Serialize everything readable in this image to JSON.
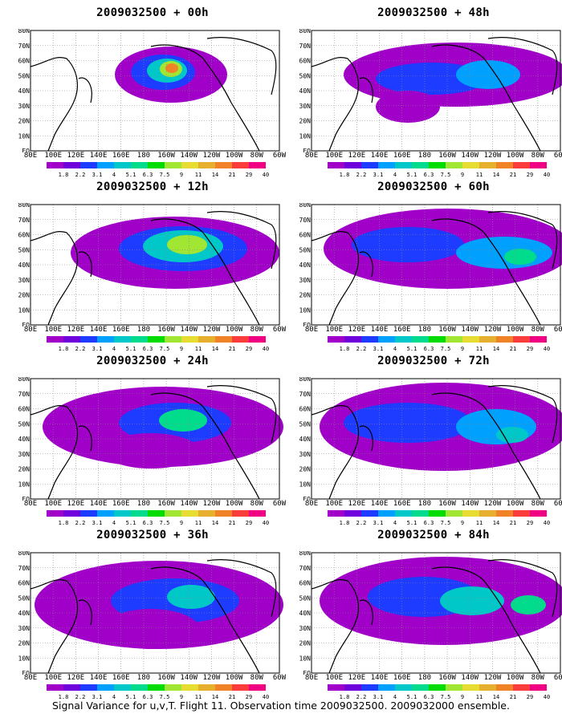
{
  "panels": [
    {
      "title": "2009032500 + 00h"
    },
    {
      "title": "2009032500 + 48h"
    },
    {
      "title": "2009032500 + 12h"
    },
    {
      "title": "2009032500 + 60h"
    },
    {
      "title": "2009032500 + 24h"
    },
    {
      "title": "2009032500 + 72h"
    },
    {
      "title": "2009032500 + 36h"
    },
    {
      "title": "2009032500 + 84h"
    }
  ],
  "longitude_labels": [
    "80E",
    "100E",
    "120E",
    "140E",
    "160E",
    "180",
    "160W",
    "140W",
    "120W",
    "100W",
    "80W",
    "60W"
  ],
  "latitude_labels": [
    "80N",
    "70N",
    "60N",
    "50N",
    "40N",
    "30N",
    "20N",
    "10N",
    "EQ"
  ],
  "colorbar_labels": [
    "1.8",
    "2.2",
    "3.1",
    "4",
    "5.1",
    "6.3",
    "7.5",
    "9",
    "11",
    "14",
    "21",
    "29",
    "40"
  ],
  "colorbar_colors": [
    "#a000c8",
    "#6e00dc",
    "#1e3cff",
    "#00a0ff",
    "#00c8c8",
    "#00dc8c",
    "#00dc00",
    "#a0e632",
    "#e6dc32",
    "#e6af2d",
    "#f08228",
    "#fa3c3c",
    "#f00082"
  ],
  "caption": "Signal Variance for u,v,T. Flight 11. Observation time 2009032500. 2009032000 ensemble."
}
